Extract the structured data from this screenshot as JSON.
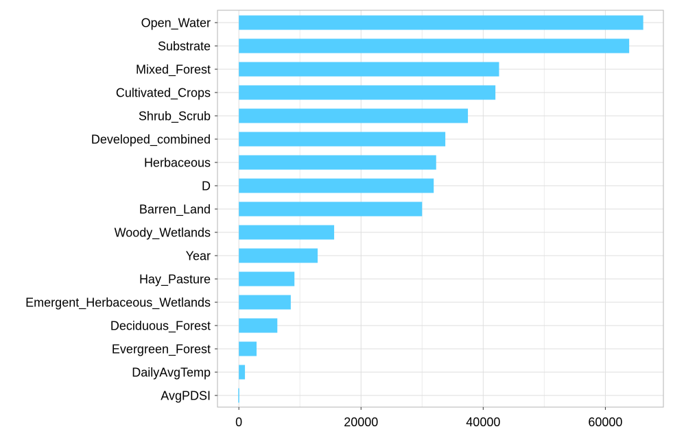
{
  "chart_data": {
    "type": "bar",
    "orientation": "horizontal",
    "title": "",
    "xlabel": "",
    "ylabel": "",
    "categories": [
      "Open_Water",
      "Substrate",
      "Mixed_Forest",
      "Cultivated_Crops",
      "Shrub_Scrub",
      "Developed_combined",
      "Herbaceous",
      "D",
      "Barren_Land",
      "Woody_Wetlands",
      "Year",
      "Hay_Pasture",
      "Emergent_Herbaceous_Wetlands",
      "Deciduous_Forest",
      "Evergreen_Forest",
      "DailyAvgTemp",
      "AvgPDSI"
    ],
    "values": [
      66200,
      63900,
      42600,
      42000,
      37500,
      33800,
      32300,
      31900,
      30000,
      15600,
      12900,
      9100,
      8500,
      6300,
      2900,
      1000,
      -100
    ],
    "xlim": [
      -3500,
      69500
    ],
    "xticks": [
      0,
      20000,
      40000,
      60000
    ],
    "xtick_labels": [
      "0",
      "20000",
      "40000",
      "60000"
    ],
    "grid": true,
    "legend": "none",
    "bar_color": "#54CEFF"
  }
}
